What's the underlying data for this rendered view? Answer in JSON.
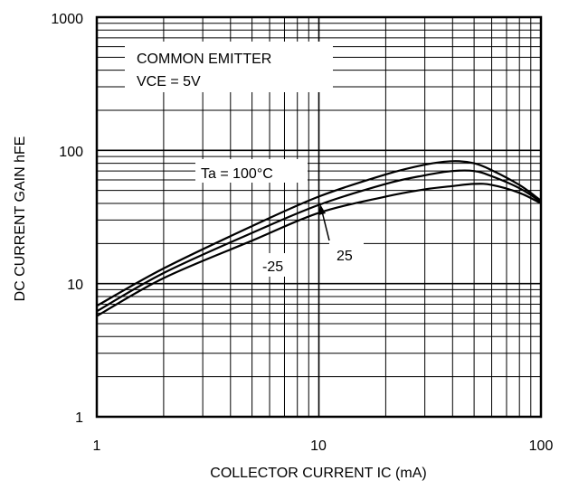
{
  "chart_data": {
    "type": "line",
    "title": "",
    "xlabel": "COLLECTOR CURRENT  IC (mA)",
    "ylabel": "DC CURRENT GAIN  hFE",
    "xscale": "log",
    "yscale": "log",
    "xlim": [
      1,
      100
    ],
    "ylim": [
      1,
      1000
    ],
    "grid": true,
    "x_tick_labels": [
      "1",
      "10",
      "100"
    ],
    "y_tick_labels": [
      "1",
      "10",
      "100",
      "1000"
    ],
    "annotations": {
      "box_line1": "COMMON EMITTER",
      "box_line2": "VCE = 5V",
      "temp_top": "Ta = 100°C",
      "temp_mid": "25",
      "temp_low": "-25"
    },
    "series": [
      {
        "temperature": "100°C",
        "x": [
          1,
          2,
          5,
          10,
          20,
          30,
          40,
          50,
          60,
          80,
          100
        ],
        "y": [
          6.8,
          13,
          27,
          45,
          66,
          78,
          83,
          80,
          71,
          55,
          42
        ]
      },
      {
        "temperature": "25°C",
        "x": [
          1,
          2,
          5,
          10,
          20,
          30,
          40,
          50,
          60,
          80,
          100
        ],
        "y": [
          6.2,
          12,
          24,
          39,
          56,
          65,
          70,
          70,
          64,
          52,
          41
        ]
      },
      {
        "temperature": "-25°C",
        "x": [
          1,
          2,
          5,
          10,
          20,
          30,
          40,
          50,
          60,
          80,
          100
        ],
        "y": [
          5.7,
          11,
          21,
          34,
          45,
          51,
          54,
          56,
          55,
          48,
          40
        ]
      }
    ]
  }
}
